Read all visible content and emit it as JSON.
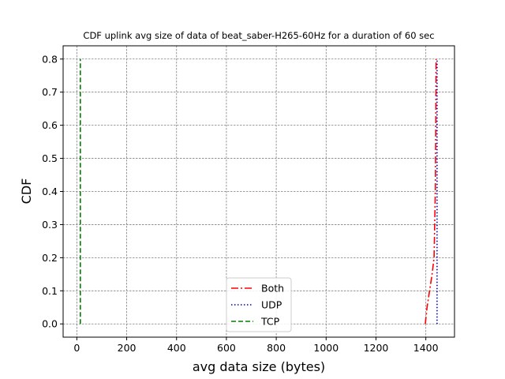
{
  "chart_data": {
    "type": "line",
    "title": "CDF uplink avg size of data of beat_saber-H265-60Hz for a duration of 60 sec",
    "xlabel": "avg data size (bytes)",
    "ylabel": "CDF",
    "xlim": [
      -55,
      1515
    ],
    "ylim": [
      -0.04,
      0.84
    ],
    "xticks": [
      0,
      200,
      400,
      600,
      800,
      1000,
      1200,
      1400
    ],
    "yticks": [
      0.0,
      0.1,
      0.2,
      0.3,
      0.4,
      0.5,
      0.6,
      0.7,
      0.8
    ],
    "grid": true,
    "legend_position": "lower center",
    "series": [
      {
        "name": "Both",
        "color": "#ff0000",
        "style": "dashdot",
        "x": [
          1398,
          1405,
          1415,
          1425,
          1433,
          1438,
          1440,
          1441
        ],
        "y": [
          0.0,
          0.05,
          0.1,
          0.15,
          0.2,
          0.4,
          0.6,
          0.8
        ]
      },
      {
        "name": "UDP",
        "color": "#0000cc",
        "style": "dotted",
        "x": [
          1445,
          1445
        ],
        "y": [
          0.0,
          0.8
        ]
      },
      {
        "name": "TCP",
        "color": "#008000",
        "style": "dashed",
        "x": [
          14,
          14
        ],
        "y": [
          0.0,
          0.8
        ]
      }
    ]
  }
}
